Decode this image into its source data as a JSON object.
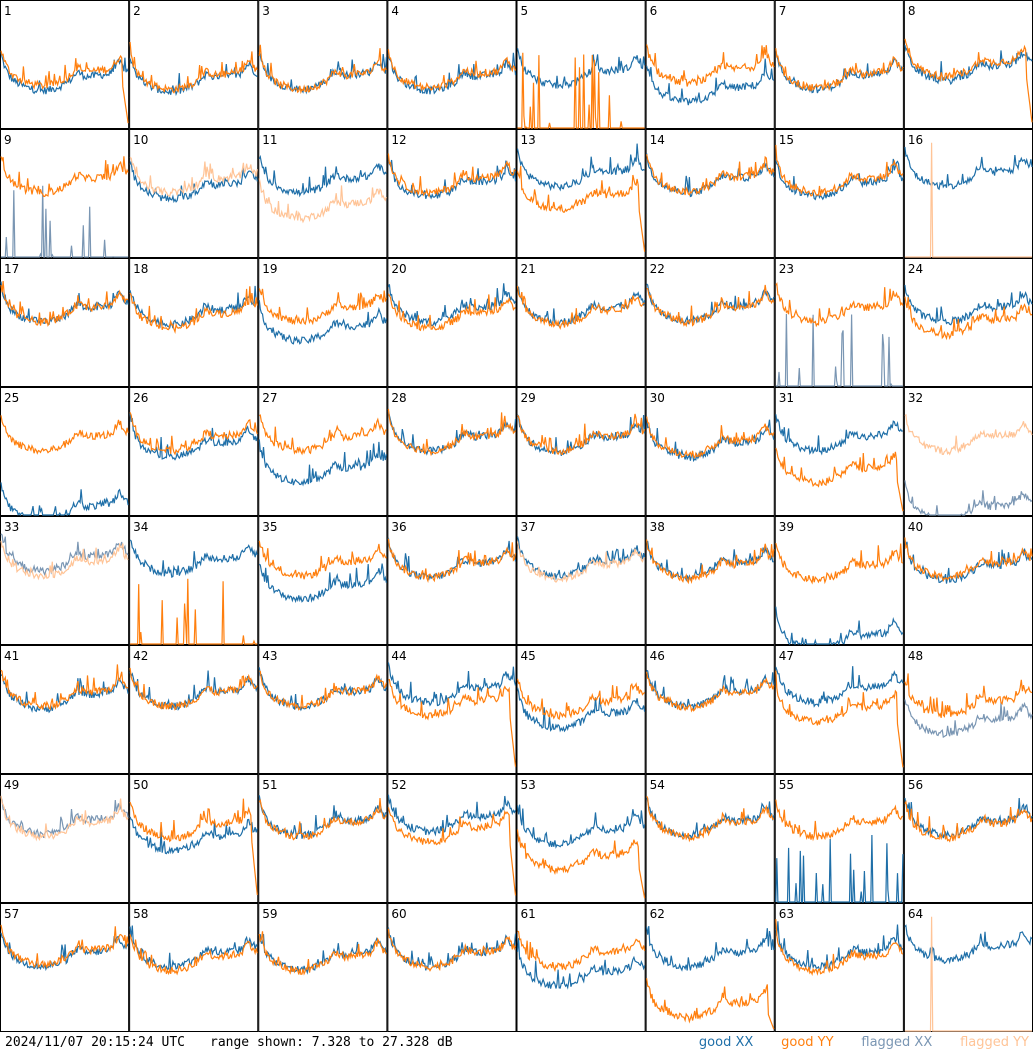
{
  "chart_data": {
    "type": "line",
    "layout": "8x8 small multiples, one panel per tile (spectrum vs frequency channel)",
    "y_unit": "dB",
    "ylim": [
      7.328,
      27.328
    ],
    "x_axis": "frequency channel (unlabeled)",
    "series_styles": [
      {
        "name": "good XX",
        "color": "#1f6fa8"
      },
      {
        "name": "good YY",
        "color": "#ff7f0e"
      },
      {
        "name": "flagged XX",
        "color": "#7a96b3"
      },
      {
        "name": "flagged YY",
        "color": "#ffc497"
      }
    ],
    "panels": [
      {
        "label": "1",
        "xx": "good",
        "yy": "good",
        "xx_level": 0.34,
        "yy_level": 0.38,
        "yy_pattern": "dropoff"
      },
      {
        "label": "2",
        "xx": "good",
        "yy": "good",
        "xx_level": 0.33,
        "yy_level": 0.35,
        "yy_pattern": "normal"
      },
      {
        "label": "3",
        "xx": "good",
        "yy": "good",
        "xx_level": 0.35,
        "yy_level": 0.35,
        "yy_pattern": "normal"
      },
      {
        "label": "4",
        "xx": "good",
        "yy": "good",
        "xx_level": 0.34,
        "yy_level": 0.36,
        "yy_pattern": "normal"
      },
      {
        "label": "5",
        "xx": "good",
        "yy": "good",
        "xx_level": 0.38,
        "yy_level": 0.0,
        "yy_pattern": "bottom_spikes"
      },
      {
        "label": "6",
        "xx": "good",
        "yy": "good",
        "xx_level": 0.25,
        "yy_level": 0.4,
        "yy_pattern": "normal"
      },
      {
        "label": "7",
        "xx": "good",
        "yy": "good",
        "xx_level": 0.35,
        "yy_level": 0.36,
        "yy_pattern": "normal"
      },
      {
        "label": "8",
        "xx": "good",
        "yy": "good",
        "xx_level": 0.42,
        "yy_level": 0.45,
        "yy_pattern": "dropoff"
      },
      {
        "label": "9",
        "xx": "flagged",
        "yy": "good",
        "xx_level": 0.0,
        "yy_level": 0.55,
        "xx_pattern": "bottom_spikes"
      },
      {
        "label": "10",
        "xx": "good",
        "yy": "flagged",
        "xx_level": 0.5,
        "yy_level": 0.55,
        "yy_pattern": "normal"
      },
      {
        "label": "11",
        "xx": "good",
        "yy": "flagged",
        "xx_level": 0.55,
        "yy_level": 0.35,
        "yy_pattern": "normal"
      },
      {
        "label": "12",
        "xx": "good",
        "yy": "good",
        "xx_level": 0.52,
        "yy_level": 0.55,
        "yy_pattern": "normal"
      },
      {
        "label": "13",
        "xx": "good",
        "yy": "good",
        "xx_level": 0.6,
        "yy_level": 0.42,
        "yy_pattern": "dropoff"
      },
      {
        "label": "14",
        "xx": "good",
        "yy": "good",
        "xx_level": 0.55,
        "yy_level": 0.56,
        "yy_pattern": "normal"
      },
      {
        "label": "15",
        "xx": "good",
        "yy": "good",
        "xx_level": 0.52,
        "yy_level": 0.55,
        "yy_pattern": "normal"
      },
      {
        "label": "16",
        "xx": "good",
        "yy": "flagged",
        "xx_level": 0.6,
        "yy_level": 0.0,
        "yy_pattern": "bottom_spike"
      },
      {
        "label": "17",
        "xx": "good",
        "yy": "good",
        "xx_level": 0.55,
        "yy_level": 0.55,
        "yy_pattern": "normal"
      },
      {
        "label": "18",
        "xx": "good",
        "yy": "good",
        "xx_level": 0.53,
        "yy_level": 0.5,
        "yy_pattern": "normal"
      },
      {
        "label": "19",
        "xx": "good",
        "yy": "good",
        "xx_level": 0.4,
        "yy_level": 0.55,
        "yy_pattern": "normal"
      },
      {
        "label": "20",
        "xx": "good",
        "yy": "good",
        "xx_level": 0.55,
        "yy_level": 0.5,
        "yy_pattern": "normal"
      },
      {
        "label": "21",
        "xx": "good",
        "yy": "good",
        "xx_level": 0.55,
        "yy_level": 0.53,
        "yy_pattern": "normal"
      },
      {
        "label": "22",
        "xx": "good",
        "yy": "good",
        "xx_level": 0.56,
        "yy_level": 0.55,
        "yy_pattern": "normal"
      },
      {
        "label": "23",
        "xx": "flagged",
        "yy": "good",
        "xx_level": 0.05,
        "yy_level": 0.55,
        "xx_pattern": "bottom_spikes"
      },
      {
        "label": "24",
        "xx": "good",
        "yy": "good",
        "xx_level": 0.55,
        "yy_level": 0.45,
        "yy_pattern": "normal"
      },
      {
        "label": "25",
        "xx": "good",
        "yy": "good",
        "xx_level": 0.0,
        "yy_level": 0.55,
        "yy_pattern": "normal"
      },
      {
        "label": "26",
        "xx": "good",
        "yy": "good",
        "xx_level": 0.5,
        "yy_level": 0.55,
        "yy_pattern": "normal"
      },
      {
        "label": "27",
        "xx": "good",
        "yy": "good",
        "xx_level": 0.3,
        "yy_level": 0.55,
        "yy_pattern": "normal"
      },
      {
        "label": "28",
        "xx": "good",
        "yy": "good",
        "xx_level": 0.55,
        "yy_level": 0.55,
        "yy_pattern": "normal"
      },
      {
        "label": "29",
        "xx": "good",
        "yy": "good",
        "xx_level": 0.54,
        "yy_level": 0.55,
        "yy_pattern": "normal"
      },
      {
        "label": "30",
        "xx": "good",
        "yy": "good",
        "xx_level": 0.5,
        "yy_level": 0.52,
        "yy_pattern": "normal"
      },
      {
        "label": "31",
        "xx": "good",
        "yy": "good",
        "xx_level": 0.55,
        "yy_level": 0.3,
        "yy_pattern": "dropoff"
      },
      {
        "label": "32",
        "xx": "flagged",
        "yy": "flagged",
        "xx_level": 0.0,
        "yy_level": 0.55,
        "yy_pattern": "normal"
      },
      {
        "label": "33",
        "xx": "flagged",
        "yy": "flagged",
        "xx_level": 0.62,
        "yy_level": 0.58,
        "yy_pattern": "normal"
      },
      {
        "label": "34",
        "xx": "good",
        "yy": "good",
        "xx_level": 0.6,
        "yy_level": 0.0,
        "yy_pattern": "bottom_spikes"
      },
      {
        "label": "35",
        "xx": "good",
        "yy": "good",
        "xx_level": 0.4,
        "yy_level": 0.58,
        "yy_pattern": "normal"
      },
      {
        "label": "36",
        "xx": "good",
        "yy": "good",
        "xx_level": 0.57,
        "yy_level": 0.57,
        "yy_pattern": "normal"
      },
      {
        "label": "37",
        "xx": "good",
        "yy": "flagged",
        "xx_level": 0.58,
        "yy_level": 0.56,
        "yy_pattern": "normal"
      },
      {
        "label": "38",
        "xx": "good",
        "yy": "good",
        "xx_level": 0.57,
        "yy_level": 0.56,
        "yy_pattern": "normal"
      },
      {
        "label": "39",
        "xx": "good",
        "yy": "good",
        "xx_level": 0.0,
        "yy_level": 0.55,
        "yy_pattern": "normal"
      },
      {
        "label": "40",
        "xx": "good",
        "yy": "good",
        "xx_level": 0.55,
        "yy_level": 0.57,
        "yy_pattern": "normal"
      },
      {
        "label": "41",
        "xx": "good",
        "yy": "good",
        "xx_level": 0.55,
        "yy_level": 0.57,
        "yy_pattern": "normal"
      },
      {
        "label": "42",
        "xx": "good",
        "yy": "good",
        "xx_level": 0.57,
        "yy_level": 0.57,
        "yy_pattern": "normal"
      },
      {
        "label": "43",
        "xx": "good",
        "yy": "good",
        "xx_level": 0.57,
        "yy_level": 0.57,
        "yy_pattern": "normal"
      },
      {
        "label": "44",
        "xx": "good",
        "yy": "good",
        "xx_level": 0.6,
        "yy_level": 0.5,
        "yy_pattern": "dropoff"
      },
      {
        "label": "45",
        "xx": "good",
        "yy": "good",
        "xx_level": 0.4,
        "yy_level": 0.5,
        "yy_pattern": "normal"
      },
      {
        "label": "46",
        "xx": "good",
        "yy": "good",
        "xx_level": 0.57,
        "yy_level": 0.56,
        "yy_pattern": "normal"
      },
      {
        "label": "47",
        "xx": "good",
        "yy": "good",
        "xx_level": 0.6,
        "yy_level": 0.45,
        "yy_pattern": "dropoff"
      },
      {
        "label": "48",
        "xx": "flagged",
        "yy": "good",
        "xx_level": 0.35,
        "yy_level": 0.5,
        "yy_pattern": "normal"
      },
      {
        "label": "49",
        "xx": "flagged",
        "yy": "flagged",
        "xx_level": 0.58,
        "yy_level": 0.56,
        "yy_pattern": "normal"
      },
      {
        "label": "50",
        "xx": "good",
        "yy": "good",
        "xx_level": 0.45,
        "yy_level": 0.55,
        "yy_pattern": "dropoff"
      },
      {
        "label": "51",
        "xx": "good",
        "yy": "good",
        "xx_level": 0.57,
        "yy_level": 0.56,
        "yy_pattern": "normal"
      },
      {
        "label": "52",
        "xx": "good",
        "yy": "good",
        "xx_level": 0.6,
        "yy_level": 0.52,
        "yy_pattern": "dropoff"
      },
      {
        "label": "53",
        "xx": "good",
        "yy": "good",
        "xx_level": 0.5,
        "yy_level": 0.3,
        "yy_pattern": "dropoff"
      },
      {
        "label": "54",
        "xx": "good",
        "yy": "good",
        "xx_level": 0.57,
        "yy_level": 0.56,
        "yy_pattern": "normal"
      },
      {
        "label": "55",
        "xx": "good",
        "yy": "good",
        "xx_level": 0.0,
        "yy_level": 0.56,
        "xx_pattern": "bottom_spikes"
      },
      {
        "label": "56",
        "xx": "good",
        "yy": "good",
        "xx_level": 0.57,
        "yy_level": 0.55,
        "yy_pattern": "normal"
      },
      {
        "label": "57",
        "xx": "good",
        "yy": "good",
        "xx_level": 0.55,
        "yy_level": 0.57,
        "yy_pattern": "normal"
      },
      {
        "label": "58",
        "xx": "good",
        "yy": "good",
        "xx_level": 0.55,
        "yy_level": 0.52,
        "yy_pattern": "normal"
      },
      {
        "label": "59",
        "xx": "good",
        "yy": "good",
        "xx_level": 0.53,
        "yy_level": 0.52,
        "yy_pattern": "normal"
      },
      {
        "label": "60",
        "xx": "good",
        "yy": "good",
        "xx_level": 0.55,
        "yy_level": 0.55,
        "yy_pattern": "normal"
      },
      {
        "label": "61",
        "xx": "good",
        "yy": "good",
        "xx_level": 0.4,
        "yy_level": 0.55,
        "yy_pattern": "normal"
      },
      {
        "label": "62",
        "xx": "good",
        "yy": "good",
        "xx_level": 0.55,
        "yy_level": 0.15,
        "yy_pattern": "dropoff"
      },
      {
        "label": "63",
        "xx": "good",
        "yy": "good",
        "xx_level": 0.55,
        "yy_level": 0.52,
        "yy_pattern": "normal"
      },
      {
        "label": "64",
        "xx": "good",
        "yy": "flagged",
        "xx_level": 0.6,
        "yy_level": 0.0,
        "yy_pattern": "bottom_spike"
      }
    ]
  },
  "footer": {
    "timestamp": "2024/11/07 20:15:24 UTC",
    "range": "range shown: 7.328 to 27.328 dB",
    "legend": [
      {
        "label": "good XX",
        "color": "#1f6fa8"
      },
      {
        "label": "good YY",
        "color": "#ff7f0e"
      },
      {
        "label": "flagged XX",
        "color": "#7a96b3"
      },
      {
        "label": "flagged YY",
        "color": "#ffc497"
      }
    ]
  }
}
